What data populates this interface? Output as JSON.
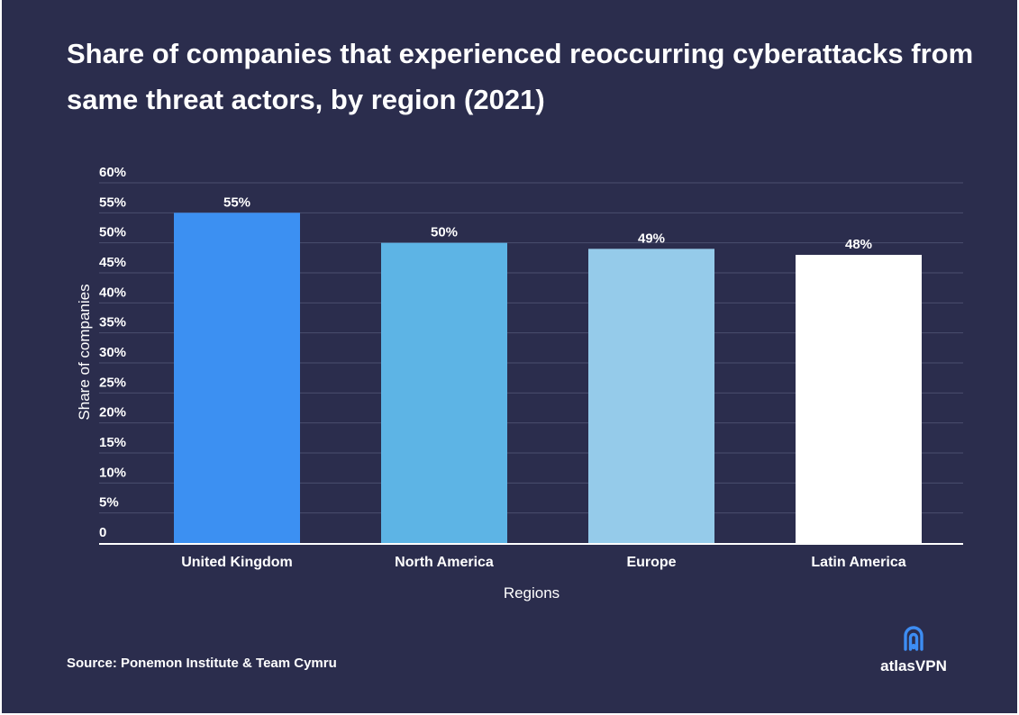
{
  "colors": {
    "background": "#2b2d4d",
    "gridline": "#4b4e6e",
    "axis": "#ffffff",
    "text": "#ffffff",
    "logo_icon": "#3d8df3"
  },
  "chart_data": {
    "type": "bar",
    "title": "Share of companies that experienced reoccurring cyberattacks from same threat actors, by region (2021)",
    "xlabel": "Regions",
    "ylabel": "Share of companies",
    "categories": [
      "United Kingdom",
      "North America",
      "Europe",
      "Latin America"
    ],
    "values": [
      55,
      50,
      49,
      48
    ],
    "value_labels": [
      "55%",
      "50%",
      "49%",
      "48%"
    ],
    "bar_colors": [
      "#3c90f2",
      "#5db4e5",
      "#95cbea",
      "#ffffff"
    ],
    "ylim": [
      0,
      60
    ],
    "y_ticks": [
      0,
      5,
      10,
      15,
      20,
      25,
      30,
      35,
      40,
      45,
      50,
      55,
      60
    ],
    "y_tick_labels": [
      "0",
      "5%",
      "10%",
      "15%",
      "20%",
      "25%",
      "30%",
      "35%",
      "40%",
      "45%",
      "50%",
      "55%",
      "60%"
    ],
    "grid": true,
    "legend": "none"
  },
  "source": "Source: Ponemon Institute & Team Cymru",
  "logo": {
    "icon": "signal-waves-icon",
    "text": "atlasVPN"
  }
}
